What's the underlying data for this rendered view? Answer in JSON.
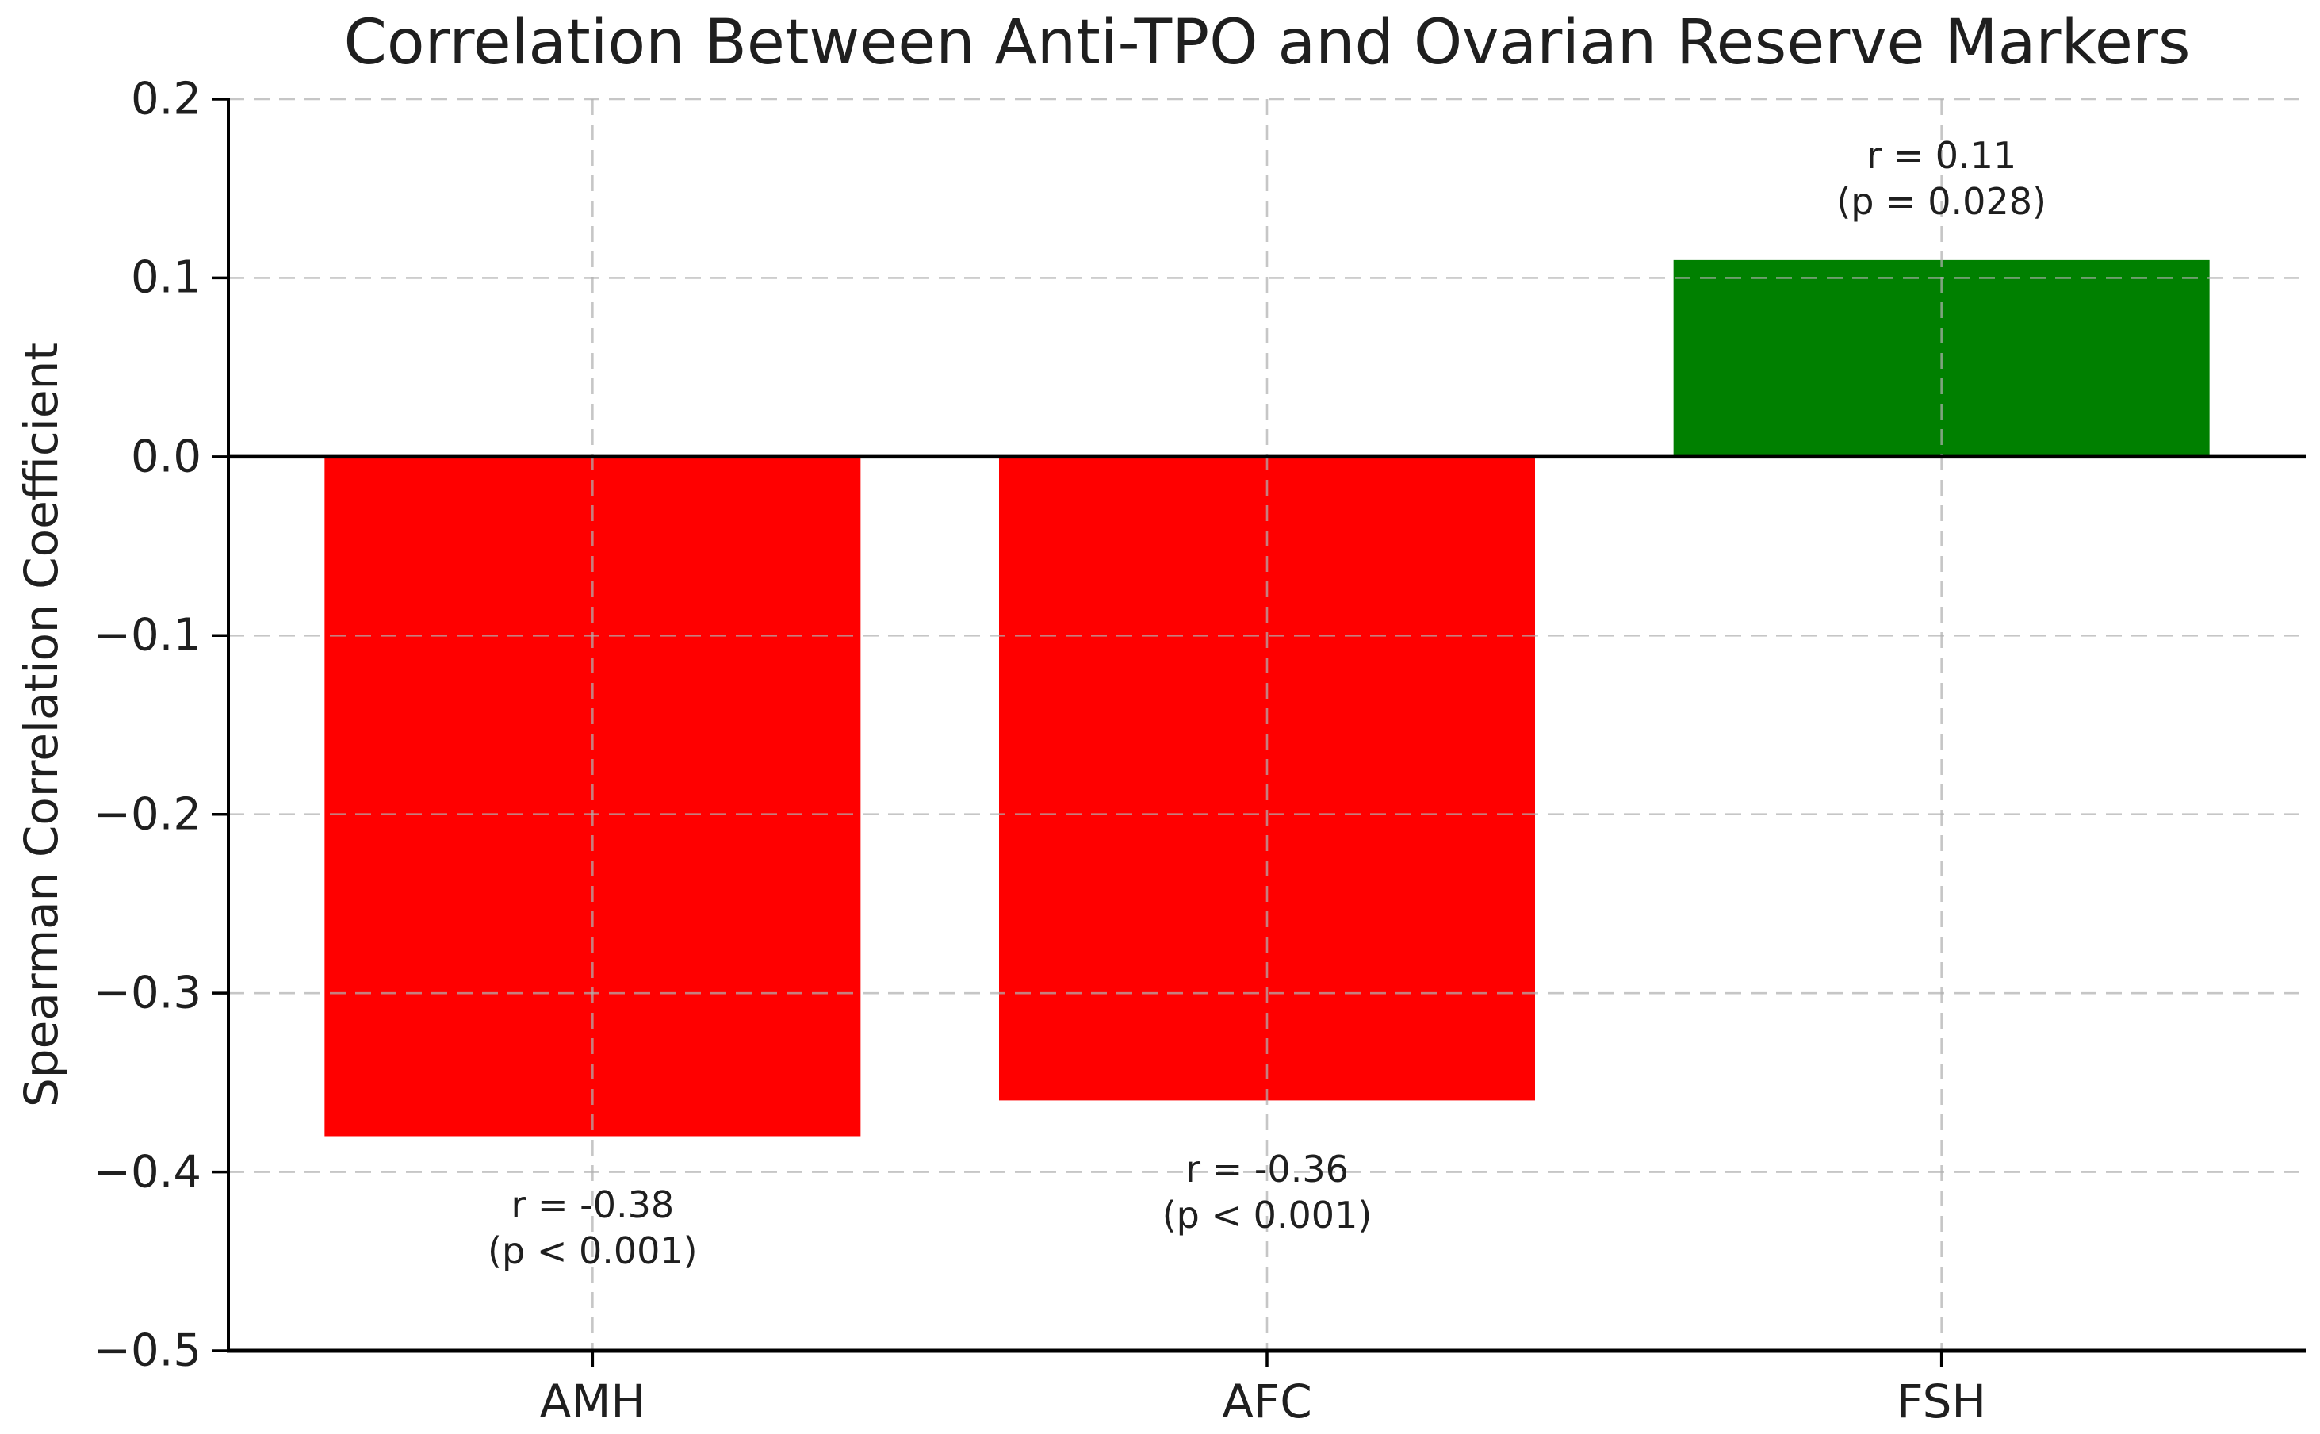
{
  "chart_data": {
    "type": "bar",
    "title": "Correlation Between Anti-TPO and Ovarian Reserve Markers",
    "xlabel": "",
    "ylabel": "Spearman Correlation Coefficient",
    "categories": [
      "AMH",
      "AFC",
      "FSH"
    ],
    "values": [
      -0.38,
      -0.36,
      0.11
    ],
    "bar_colors": [
      "#ff0000",
      "#ff0000",
      "#008000"
    ],
    "annotations": [
      {
        "category": "AMH",
        "lines": [
          "r = -0.38",
          "(p < 0.001)"
        ],
        "placement": "below-bar"
      },
      {
        "category": "AFC",
        "lines": [
          "r = -0.36",
          "(p < 0.001)"
        ],
        "placement": "below-bar"
      },
      {
        "category": "FSH",
        "lines": [
          "r = 0.11",
          "(p = 0.028)"
        ],
        "placement": "above-bar"
      }
    ],
    "ylim": [
      -0.5,
      0.2
    ],
    "yticks": [
      0.2,
      0.1,
      0.0,
      -0.1,
      -0.2,
      -0.3,
      -0.4,
      -0.5
    ],
    "ytick_labels": [
      "0.2",
      "0.1",
      "0.0",
      "−0.1",
      "−0.2",
      "−0.3",
      "−0.4",
      "−0.5"
    ],
    "grid": true,
    "grid_linestyle": "dashed",
    "legend": "none",
    "zero_line": true,
    "colors": {
      "negative_bar": "#ff0000",
      "positive_bar": "#008000",
      "grid": "#b0b0b0",
      "axis": "#000000",
      "text": "#1f1f1f",
      "background": "#ffffff"
    }
  }
}
